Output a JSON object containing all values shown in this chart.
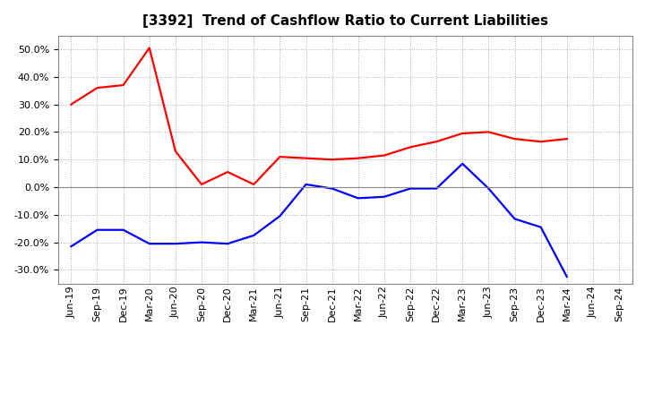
{
  "title": "[3392]  Trend of Cashflow Ratio to Current Liabilities",
  "x_labels": [
    "Jun-19",
    "Sep-19",
    "Dec-19",
    "Mar-20",
    "Jun-20",
    "Sep-20",
    "Dec-20",
    "Mar-21",
    "Jun-21",
    "Sep-21",
    "Dec-21",
    "Mar-22",
    "Jun-22",
    "Sep-22",
    "Dec-22",
    "Mar-23",
    "Jun-23",
    "Sep-23",
    "Dec-23",
    "Mar-24",
    "Jun-24",
    "Sep-24"
  ],
  "operating_cf": [
    0.3,
    0.36,
    0.37,
    0.505,
    0.13,
    0.01,
    0.055,
    0.01,
    0.11,
    0.105,
    0.1,
    0.105,
    0.115,
    0.145,
    0.165,
    0.195,
    0.2,
    0.175,
    0.165,
    0.175,
    null,
    null
  ],
  "free_cf": [
    -0.215,
    -0.155,
    -0.155,
    -0.205,
    -0.205,
    -0.2,
    -0.205,
    -0.175,
    -0.105,
    0.01,
    -0.005,
    -0.04,
    -0.035,
    -0.005,
    -0.005,
    0.085,
    -0.005,
    -0.115,
    -0.145,
    -0.325,
    null,
    null
  ],
  "operating_color": "#ff0000",
  "free_color": "#0000ff",
  "ylim": [
    -0.35,
    0.55
  ],
  "yticks": [
    -0.3,
    -0.2,
    -0.1,
    0.0,
    0.1,
    0.2,
    0.3,
    0.4,
    0.5
  ],
  "background_color": "#ffffff",
  "plot_bg_color": "#ffffff",
  "grid_color": "#aaaaaa",
  "title_fontsize": 11,
  "legend_fontsize": 9,
  "tick_fontsize": 8
}
